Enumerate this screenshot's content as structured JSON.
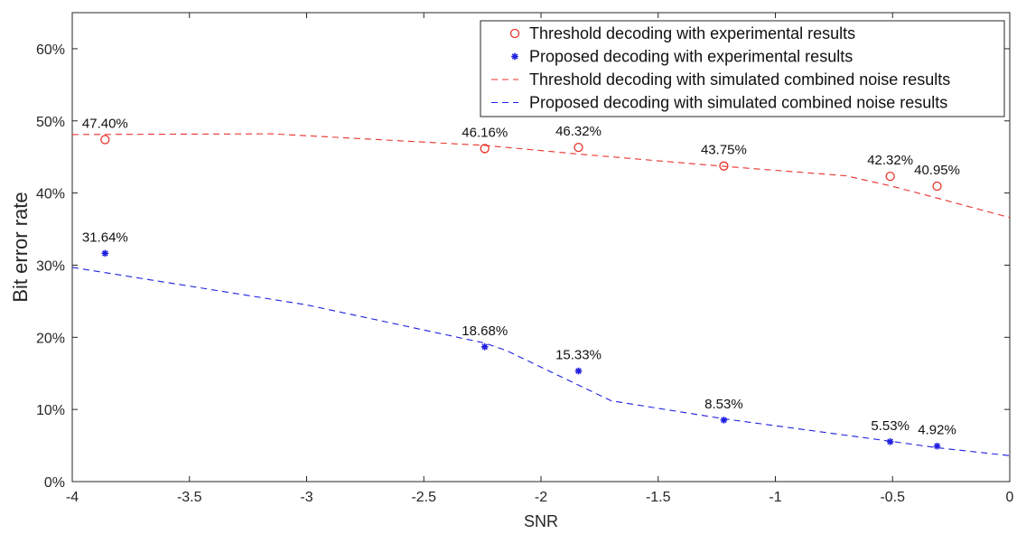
{
  "chart_data": {
    "type": "line",
    "xlabel": "SNR",
    "ylabel": "Bit error rate",
    "xlim": [
      -4,
      0
    ],
    "ylim": [
      0,
      65
    ],
    "x_ticks": [
      -4,
      -3.5,
      -3,
      -2.5,
      -2,
      -1.5,
      -1,
      -0.5,
      0
    ],
    "x_tick_labels": [
      "-4",
      "-3.5",
      "-3",
      "-2.5",
      "-2",
      "-1.5",
      "-1",
      "-0.5",
      "0"
    ],
    "y_ticks": [
      0,
      10,
      20,
      30,
      40,
      50,
      60
    ],
    "y_tick_labels": [
      "0%",
      "10%",
      "20%",
      "30%",
      "40%",
      "50%",
      "60%"
    ],
    "grid": false,
    "legend_position": "top-right",
    "series": [
      {
        "name": "Threshold decoding with experimental results",
        "style": "circle",
        "color": "#e8322a",
        "points": [
          {
            "x": -3.86,
            "y": 47.4,
            "label": "47.40%"
          },
          {
            "x": -2.24,
            "y": 46.16,
            "label": "46.16%"
          },
          {
            "x": -1.84,
            "y": 46.32,
            "label": "46.32%"
          },
          {
            "x": -1.22,
            "y": 43.75,
            "label": "43.75%"
          },
          {
            "x": -0.51,
            "y": 42.32,
            "label": "42.32%"
          },
          {
            "x": -0.31,
            "y": 40.95,
            "label": "40.95%"
          }
        ]
      },
      {
        "name": "Proposed decoding with experimental results",
        "style": "asterisk",
        "color": "#1f1fe0",
        "points": [
          {
            "x": -3.86,
            "y": 31.64,
            "label": "31.64%"
          },
          {
            "x": -2.24,
            "y": 18.68,
            "label": "18.68%"
          },
          {
            "x": -1.84,
            "y": 15.33,
            "label": "15.33%"
          },
          {
            "x": -1.22,
            "y": 8.53,
            "label": "8.53%"
          },
          {
            "x": -0.51,
            "y": 5.53,
            "label": "5.53%"
          },
          {
            "x": -0.31,
            "y": 4.92,
            "label": "4.92%"
          }
        ]
      },
      {
        "name": "Threshold decoding with simulated combined noise results",
        "style": "dashed",
        "color": "#e8322a",
        "points": [
          {
            "x": -4.0,
            "y": 48.1
          },
          {
            "x": -3.15,
            "y": 48.2
          },
          {
            "x": -2.24,
            "y": 46.6
          },
          {
            "x": -1.84,
            "y": 45.4
          },
          {
            "x": -1.22,
            "y": 43.7
          },
          {
            "x": -0.7,
            "y": 42.4
          },
          {
            "x": -0.51,
            "y": 41.0
          },
          {
            "x": -0.31,
            "y": 39.3
          },
          {
            "x": 0.0,
            "y": 36.6
          }
        ]
      },
      {
        "name": "Proposed decoding with simulated combined noise results",
        "style": "dashed",
        "color": "#1f1fe0",
        "points": [
          {
            "x": -4.0,
            "y": 29.7
          },
          {
            "x": -3.0,
            "y": 24.5
          },
          {
            "x": -2.24,
            "y": 19.2
          },
          {
            "x": -2.15,
            "y": 18.2
          },
          {
            "x": -1.7,
            "y": 11.2
          },
          {
            "x": -1.22,
            "y": 8.7
          },
          {
            "x": -0.51,
            "y": 5.6
          },
          {
            "x": -0.31,
            "y": 4.7
          },
          {
            "x": 0.0,
            "y": 3.6
          }
        ]
      }
    ]
  }
}
